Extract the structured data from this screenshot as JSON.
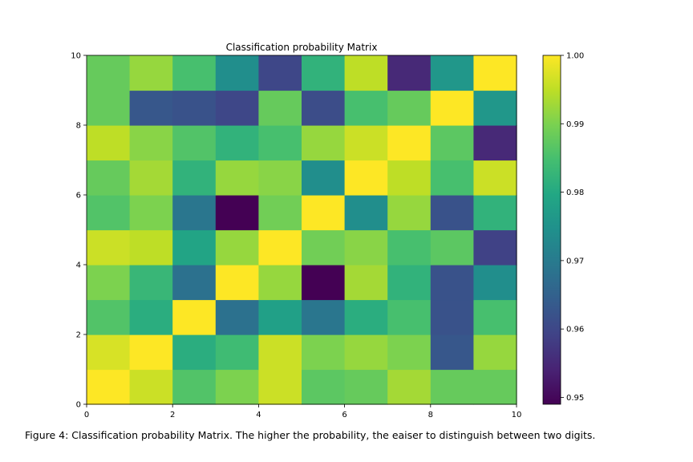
{
  "figure_caption": "Figure 4: Classification probability Matrix. The higher the probability, the eaiser to distinguish between two digits.",
  "chart_data": {
    "type": "heatmap",
    "title": "Classification probability Matrix",
    "xlabel": "",
    "ylabel": "",
    "xlim": [
      0,
      10
    ],
    "ylim": [
      0,
      10
    ],
    "x_ticks": [
      "0",
      "2",
      "4",
      "6",
      "8",
      "10"
    ],
    "y_ticks": [
      "0",
      "2",
      "4",
      "6",
      "8",
      "10"
    ],
    "colormap": "viridis",
    "color_range": [
      0.949,
      1.0
    ],
    "colorbar_ticks": [
      "0.95",
      "0.96",
      "0.97",
      "0.98",
      "0.99",
      "1.00"
    ],
    "colorbar_tick_values": [
      0.95,
      0.96,
      0.97,
      0.98,
      0.99,
      1.0
    ],
    "grid": false,
    "matrix": [
      [
        1.0,
        0.996,
        0.986,
        0.99,
        0.996,
        0.987,
        0.988,
        0.993,
        0.988,
        0.988
      ],
      [
        0.997,
        1.0,
        0.981,
        0.984,
        0.996,
        0.99,
        0.992,
        0.99,
        0.963,
        0.992
      ],
      [
        0.986,
        0.981,
        1.0,
        0.968,
        0.978,
        0.969,
        0.981,
        0.985,
        0.962,
        0.985
      ],
      [
        0.99,
        0.983,
        0.968,
        1.0,
        0.992,
        0.949,
        0.993,
        0.982,
        0.962,
        0.974
      ],
      [
        0.996,
        0.995,
        0.979,
        0.992,
        1.0,
        0.989,
        0.991,
        0.985,
        0.987,
        0.959
      ],
      [
        0.986,
        0.99,
        0.969,
        0.949,
        0.989,
        1.0,
        0.974,
        0.992,
        0.962,
        0.982
      ],
      [
        0.988,
        0.993,
        0.982,
        0.992,
        0.991,
        0.974,
        1.0,
        0.995,
        0.985,
        0.996
      ],
      [
        0.995,
        0.991,
        0.986,
        0.982,
        0.985,
        0.992,
        0.996,
        1.0,
        0.987,
        0.955
      ],
      [
        0.988,
        0.963,
        0.962,
        0.96,
        0.988,
        0.961,
        0.985,
        0.988,
        1.0,
        0.976
      ],
      [
        0.988,
        0.992,
        0.985,
        0.974,
        0.96,
        0.982,
        0.995,
        0.955,
        0.976,
        1.0
      ]
    ]
  }
}
